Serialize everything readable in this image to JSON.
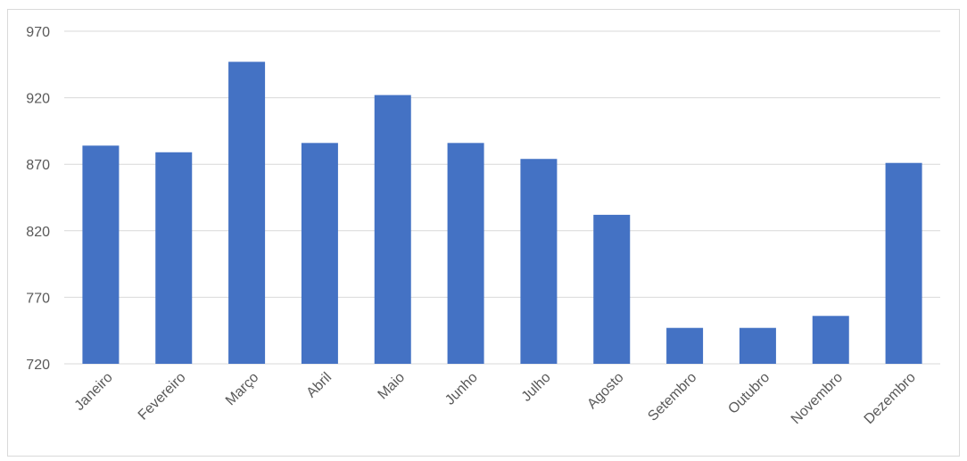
{
  "chart_data": {
    "type": "bar",
    "title": "",
    "xlabel": "",
    "ylabel": "",
    "categories": [
      "Janeiro",
      "Fevereiro",
      "Março",
      "Abril",
      "Maio",
      "Junho",
      "Julho",
      "Agosto",
      "Setembro",
      "Outubro",
      "Novembro",
      "Dezembro"
    ],
    "values": [
      884,
      879,
      947,
      886,
      922,
      886,
      874,
      832,
      747,
      747,
      756,
      871
    ],
    "ylim": [
      720,
      970
    ],
    "yticks": [
      720,
      770,
      820,
      870,
      920,
      970
    ],
    "ytick_labels": [
      "720",
      "770",
      "820",
      "870",
      "920",
      "970"
    ],
    "grid": true,
    "legend": "none",
    "colors": {
      "bar": "#4472C4",
      "grid": "#d9d9d9",
      "axis": "#d9d9d9",
      "text": "#595959"
    }
  }
}
